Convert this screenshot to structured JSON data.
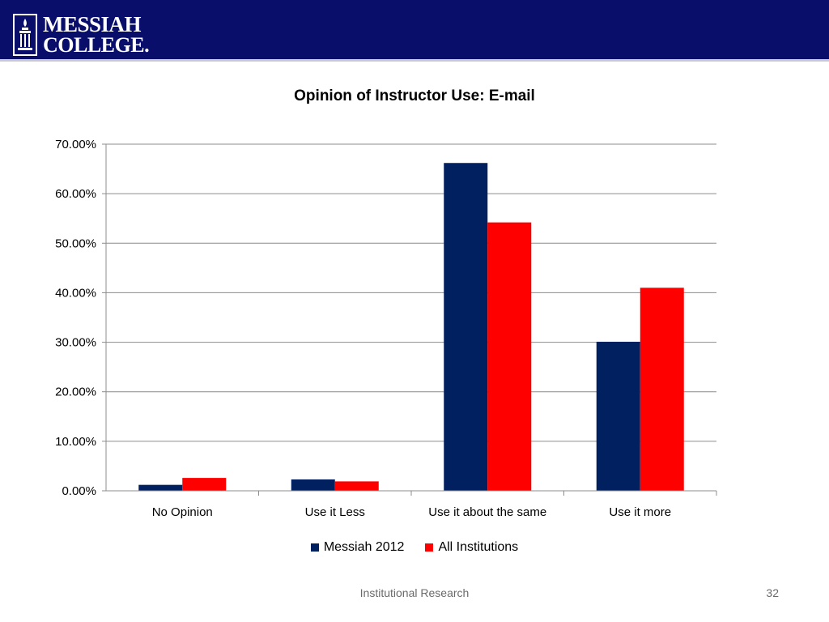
{
  "header": {
    "logo_line1": "MESSIAH",
    "logo_line2": "COLLEGE."
  },
  "colors": {
    "header_bg": "#0a0e6b",
    "series_1": "#002060",
    "series_2": "#ff0000"
  },
  "chart_data": {
    "type": "bar",
    "title": "Opinion of Instructor Use: E-mail",
    "categories": [
      "No Opinion",
      "Use it Less",
      "Use it about the same",
      "Use it more"
    ],
    "series": [
      {
        "name": "Messiah 2012",
        "color": "#002060",
        "values": [
          1.2,
          2.3,
          66.2,
          30.1
        ]
      },
      {
        "name": "All Institutions",
        "color": "#ff0000",
        "values": [
          2.6,
          1.9,
          54.2,
          41.0
        ]
      }
    ],
    "ylim": [
      0,
      70
    ],
    "yticks": [
      "0.00%",
      "10.00%",
      "20.00%",
      "30.00%",
      "40.00%",
      "50.00%",
      "60.00%",
      "70.00%"
    ],
    "grid": true,
    "legend_position": "bottom"
  },
  "footer": {
    "center": "Institutional Research",
    "page_number": "32"
  }
}
